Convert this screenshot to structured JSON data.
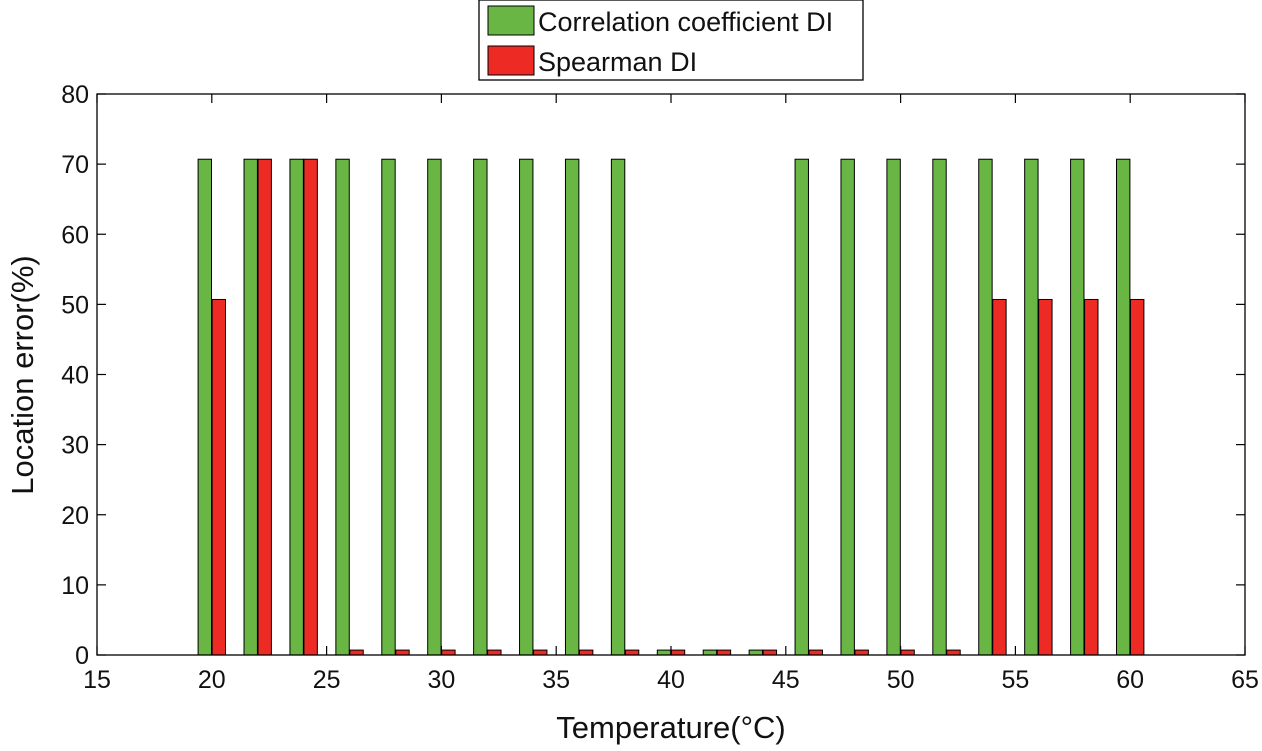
{
  "chart_data": {
    "type": "bar",
    "title": "",
    "xlabel": "Temperature(°C)",
    "ylabel": "Location error(%)",
    "xlim": [
      15,
      65
    ],
    "ylim": [
      0,
      80
    ],
    "xticks": [
      15,
      20,
      25,
      30,
      35,
      40,
      45,
      50,
      55,
      60,
      65
    ],
    "yticks": [
      0,
      10,
      20,
      30,
      40,
      50,
      60,
      70,
      80
    ],
    "grid": false,
    "legend_position": "top-center-outside",
    "categories": [
      20,
      22,
      24,
      26,
      28,
      30,
      32,
      34,
      36,
      38,
      40,
      42,
      44,
      46,
      48,
      50,
      52,
      54,
      56,
      58,
      60
    ],
    "series": [
      {
        "name": "Correlation coefficient DI",
        "color": "#6ab644",
        "values": [
          70.7,
          70.7,
          70.7,
          70.7,
          70.7,
          70.7,
          70.7,
          70.7,
          70.7,
          70.7,
          0.7,
          0.7,
          0.7,
          70.7,
          70.7,
          70.7,
          70.7,
          70.7,
          70.7,
          70.7,
          70.7
        ]
      },
      {
        "name": "Spearman DI",
        "color": "#ee2a24",
        "values": [
          50.7,
          70.7,
          70.7,
          0.7,
          0.7,
          0.7,
          0.7,
          0.7,
          0.7,
          0.7,
          0.7,
          0.7,
          0.7,
          0.7,
          0.7,
          0.7,
          0.7,
          50.7,
          50.7,
          50.7,
          50.7
        ]
      }
    ]
  }
}
